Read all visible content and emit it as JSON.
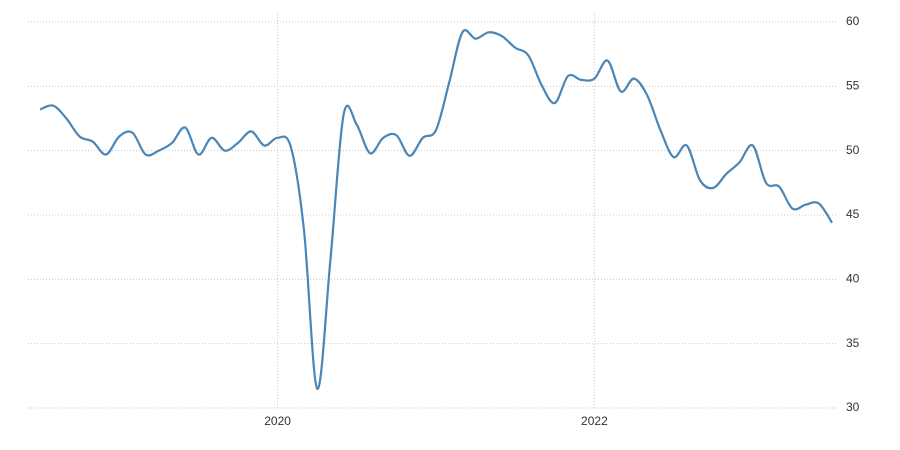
{
  "chart_data": {
    "type": "line",
    "categories": [
      null,
      null,
      null,
      null,
      null,
      null,
      null,
      null,
      null,
      null,
      null,
      null,
      null,
      null,
      null,
      null,
      null,
      null,
      "2020",
      null,
      null,
      null,
      null,
      null,
      null,
      null,
      null,
      null,
      null,
      null,
      null,
      null,
      null,
      null,
      null,
      null,
      null,
      null,
      null,
      null,
      null,
      null,
      "2022",
      null,
      null,
      null,
      null,
      null,
      null,
      null,
      null,
      null,
      null,
      null,
      null,
      null,
      null,
      null,
      null,
      null,
      null
    ],
    "series": [
      {
        "color": "#4a86b6",
        "values": [
          53.2,
          53.5,
          52.5,
          51.1,
          50.7,
          49.7,
          51.1,
          51.4,
          49.7,
          50.0,
          50.6,
          51.8,
          49.7,
          51.0,
          50.0,
          50.6,
          51.5,
          50.4,
          51.0,
          50.3,
          43.8,
          31.5,
          41.5,
          52.8,
          52.0,
          49.8,
          51.0,
          51.2,
          49.6,
          51.0,
          51.6,
          55.3,
          59.2,
          58.7,
          59.2,
          58.9,
          58.0,
          57.4,
          55.1,
          53.7,
          55.8,
          55.5,
          55.6,
          57.0,
          54.6,
          55.6,
          54.3,
          51.6,
          49.5,
          50.4,
          47.7,
          47.1,
          48.2,
          49.1,
          50.4,
          47.5,
          47.2,
          45.5,
          45.8,
          45.9,
          44.4
        ]
      }
    ],
    "ylim": [
      30,
      60
    ],
    "yticks": [
      30,
      35,
      40,
      45,
      50,
      55,
      60
    ],
    "grid": true
  }
}
